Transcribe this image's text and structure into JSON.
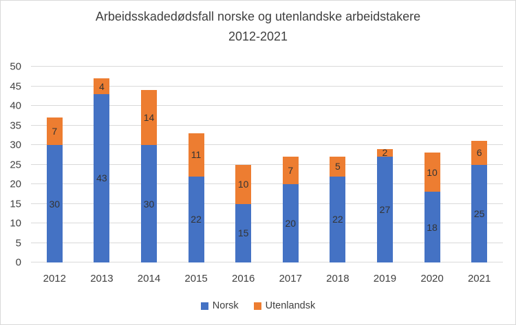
{
  "header": {
    "line1": "Arbeidsskadedødsfall norske og utenlandske arbeidstakere",
    "line2": "2012-2021"
  },
  "colors": {
    "norsk": "#4472C4",
    "utenlandsk": "#ED7D31",
    "gridline": "#D9D9D9",
    "text": "#404040",
    "frame_border": "#D9D9D9",
    "background": "#FFFFFF"
  },
  "chart_data": {
    "type": "bar",
    "stacked": true,
    "title": "Arbeidsskadedødsfall norske og utenlandske arbeidstakere 2012-2021",
    "categories": [
      "2012",
      "2013",
      "2014",
      "2015",
      "2016",
      "2017",
      "2018",
      "2019",
      "2020",
      "2021"
    ],
    "series": [
      {
        "name": "Norsk",
        "color": "#4472C4",
        "values": [
          30,
          43,
          30,
          22,
          15,
          20,
          22,
          27,
          18,
          25
        ]
      },
      {
        "name": "Utenlandsk",
        "color": "#ED7D31",
        "values": [
          7,
          4,
          14,
          11,
          10,
          7,
          5,
          2,
          10,
          6
        ]
      }
    ],
    "totals": [
      37,
      47,
      44,
      33,
      25,
      27,
      27,
      29,
      28,
      31
    ],
    "xlabel": "",
    "ylabel": "",
    "ylim": [
      0,
      50
    ],
    "ytick_step": 5,
    "ytick_labels": [
      "0",
      "5",
      "10",
      "15",
      "20",
      "25",
      "30",
      "35",
      "40",
      "45",
      "50"
    ],
    "grid": true,
    "data_labels": true,
    "legend_position": "bottom"
  }
}
